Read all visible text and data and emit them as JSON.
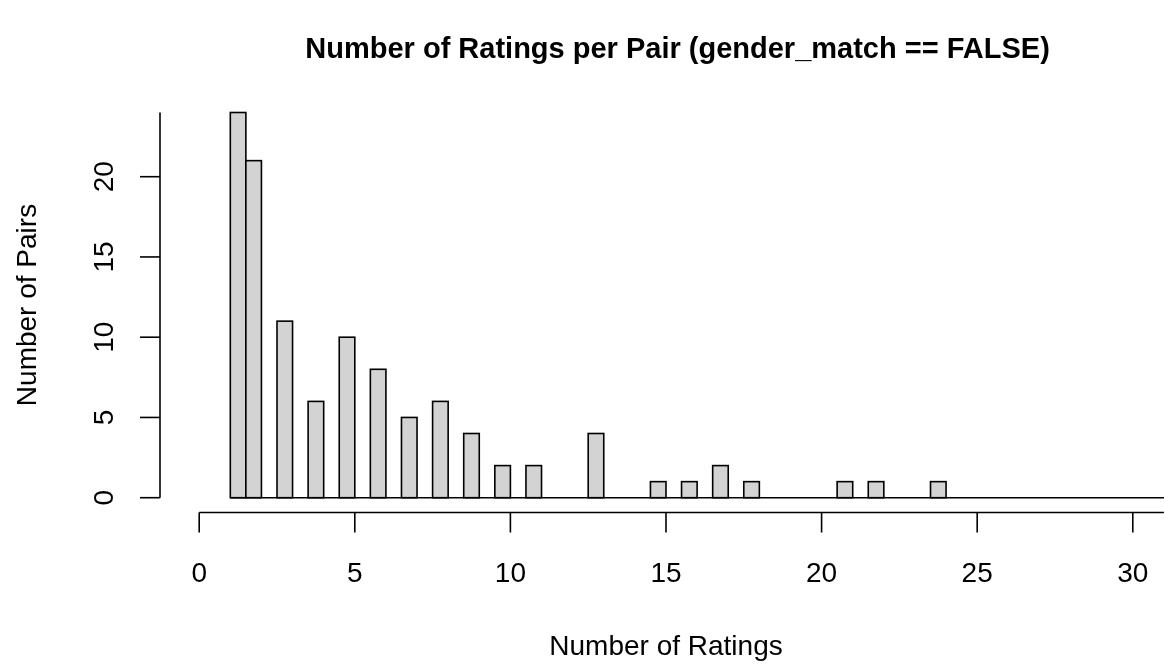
{
  "chart_data": {
    "type": "histogram",
    "title": "Number of Ratings per Pair (gender_match == FALSE)",
    "xlabel": "Number of Ratings",
    "ylabel": "Number of Pairs",
    "color": "#d3d3d3",
    "bins": [
      1,
      1.5,
      2,
      2.5,
      3,
      3.5,
      4,
      4.5,
      5,
      5.5,
      6,
      6.5,
      7,
      7.5,
      8,
      8.5,
      9,
      9.5,
      10,
      10.5,
      11,
      11.5,
      12,
      12.5,
      13,
      13.5,
      14,
      14.5,
      15,
      15.5,
      16,
      16.5,
      17,
      17.5,
      18,
      18.5,
      19,
      19.5,
      20,
      20.5,
      21,
      21.5,
      22,
      22.5,
      23,
      23.5,
      24,
      24.5,
      25,
      25.5,
      26,
      26.5,
      27,
      27.5,
      28,
      28.5,
      29,
      29.5,
      30,
      30.5,
      31
    ],
    "values": [
      24,
      21,
      0,
      11,
      0,
      6,
      0,
      10,
      0,
      8,
      0,
      5,
      0,
      6,
      0,
      4,
      0,
      2,
      0,
      2,
      0,
      0,
      0,
      4,
      0,
      0,
      0,
      1,
      0,
      1,
      0,
      2,
      0,
      1,
      0,
      0,
      0,
      0,
      0,
      1,
      0,
      1,
      0,
      0,
      0,
      1,
      0,
      0,
      0,
      0,
      0,
      0,
      0,
      0,
      0,
      0,
      0,
      0,
      0,
      0
    ],
    "xlim": [
      0,
      31
    ],
    "ylim": [
      0,
      24
    ],
    "xticks": [
      0,
      5,
      10,
      15,
      20,
      25,
      30
    ],
    "yticks": [
      0,
      5,
      10,
      15,
      20
    ]
  }
}
